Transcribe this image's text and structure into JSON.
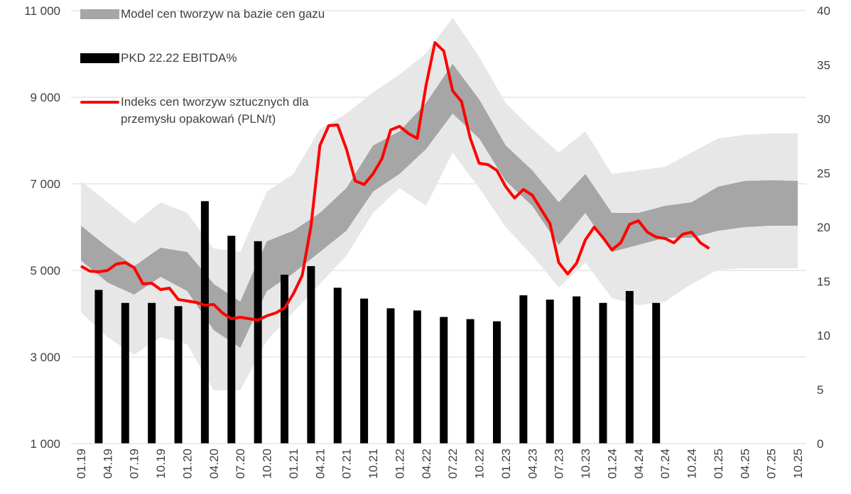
{
  "chart_data": {
    "type": "combo",
    "categories": [
      "01.19",
      null,
      null,
      "04.19",
      null,
      null,
      "07.19",
      null,
      null,
      "10.19",
      null,
      null,
      "01.20",
      null,
      null,
      "04.20",
      null,
      null,
      "07.20",
      null,
      null,
      "10.20",
      null,
      null,
      "01.21",
      null,
      null,
      "04.21",
      null,
      null,
      "07.21",
      null,
      null,
      "10.21",
      null,
      null,
      "01.22",
      null,
      null,
      "04.22",
      null,
      null,
      "07.22",
      null,
      null,
      "10.22",
      null,
      null,
      "01.23",
      null,
      null,
      "04.23",
      null,
      null,
      "07.23",
      null,
      null,
      "10.23",
      null,
      null,
      "01.24",
      null,
      null,
      "04.24",
      null,
      null,
      "07.24",
      null,
      null,
      "10.24",
      null,
      null,
      "01.25",
      null,
      null,
      "04.25",
      null,
      null,
      "07.25",
      null,
      null,
      "10.25"
    ],
    "ylim": [
      1000,
      11000
    ],
    "yticks": [
      {
        "value": 1000,
        "label": "1 000"
      },
      {
        "value": 3000,
        "label": "3 000"
      },
      {
        "value": 5000,
        "label": "5 000"
      },
      {
        "value": 7000,
        "label": "7 000"
      },
      {
        "value": 9000,
        "label": "9 000"
      },
      {
        "value": 11000,
        "label": "11 000"
      }
    ],
    "y2lim": [
      0,
      40
    ],
    "y2ticks": [
      0,
      5,
      10,
      15,
      20,
      25,
      30,
      35,
      40
    ],
    "grid": true,
    "outer_band": {
      "color": "#e7e7e7",
      "low": [
        4033,
        3842,
        3650,
        3459,
        3322,
        3186,
        3049,
        3186,
        3322,
        3459,
        3404,
        3350,
        3295,
        2940,
        2585,
        2230,
        2230,
        2230,
        2230,
        2612,
        2995,
        3377,
        3596,
        3814,
        4033,
        4252,
        4470,
        4689,
        4907,
        5126,
        5344,
        5672,
        6000,
        6328,
        6519,
        6711,
        6902,
        6765,
        6629,
        6492,
        6902,
        7311,
        7721,
        7448,
        7175,
        6902,
        6601,
        6301,
        6000,
        5781,
        5563,
        5344,
        5098,
        4853,
        4607,
        4798,
        4989,
        5180,
        4907,
        4634,
        4361,
        4306,
        4252,
        4197,
        4224,
        4252,
        4279,
        4416,
        4552,
        4689,
        4798,
        4907,
        5016,
        5027,
        5038,
        5049,
        5049,
        5049,
        5049,
        5049,
        5049,
        5049
      ],
      "high": [
        7066,
        6902,
        6738,
        6574,
        6410,
        6246,
        6082,
        6246,
        6410,
        6574,
        6492,
        6410,
        6328,
        6055,
        5781,
        5508,
        5481,
        5453,
        5426,
        5891,
        6355,
        6820,
        6957,
        7093,
        7230,
        7574,
        7918,
        8262,
        8382,
        8503,
        8623,
        8787,
        8951,
        9115,
        9252,
        9388,
        9525,
        9689,
        9852,
        10016,
        10289,
        10563,
        10836,
        10535,
        10235,
        9934,
        9579,
        9224,
        8869,
        8667,
        8464,
        8262,
        8082,
        7901,
        7721,
        7885,
        8049,
        8213,
        7885,
        7558,
        7230,
        7257,
        7284,
        7311,
        7338,
        7366,
        7393,
        7502,
        7612,
        7721,
        7830,
        7940,
        8049,
        8076,
        8104,
        8131,
        8142,
        8153,
        8164,
        8164,
        8164,
        8164
      ]
    },
    "series": [
      {
        "name": "Model cen tworzyw na bazie cen gazu",
        "type": "band",
        "color": "#a6a6a6",
        "low": [
          5230,
          5060,
          4891,
          4721,
          4628,
          4536,
          4443,
          4579,
          4716,
          4852,
          4743,
          4634,
          4525,
          4224,
          3924,
          3623,
          3486,
          3350,
          3213,
          3650,
          4088,
          4525,
          4661,
          4798,
          4934,
          5098,
          5262,
          5426,
          5590,
          5754,
          5918,
          6219,
          6519,
          6820,
          6957,
          7093,
          7230,
          7421,
          7612,
          7803,
          8076,
          8350,
          8623,
          8432,
          8240,
          8049,
          7721,
          7394,
          7066,
          6875,
          6683,
          6492,
          6191,
          5891,
          5590,
          5836,
          6082,
          6328,
          6027,
          5727,
          5426,
          5481,
          5535,
          5590,
          5645,
          5699,
          5754,
          5754,
          5754,
          5754,
          5809,
          5863,
          5918,
          5945,
          5973,
          6000,
          6011,
          6022,
          6033,
          6033,
          6033,
          6033
        ],
        "high": [
          6033,
          5869,
          5705,
          5541,
          5393,
          5246,
          5098,
          5240,
          5383,
          5525,
          5492,
          5459,
          5426,
          5180,
          4935,
          4689,
          4552,
          4416,
          4279,
          4743,
          5208,
          5672,
          5754,
          5836,
          5918,
          6055,
          6191,
          6328,
          6519,
          6711,
          6902,
          7230,
          7557,
          7885,
          7994,
          8104,
          8213,
          8432,
          8650,
          8869,
          9169,
          9470,
          9770,
          9497,
          9224,
          8951,
          8596,
          8240,
          7885,
          7694,
          7502,
          7311,
          7065,
          6820,
          6574,
          6793,
          7011,
          7230,
          6929,
          6629,
          6328,
          6328,
          6328,
          6328,
          6383,
          6437,
          6492,
          6519,
          6547,
          6574,
          6694,
          6814,
          6934,
          6978,
          7022,
          7066,
          7071,
          7077,
          7082,
          7077,
          7071,
          7066
        ]
      },
      {
        "name": "PKD 22.22 EBITDA%",
        "type": "bar",
        "color": "#000000",
        "axis": "y2",
        "values": [
          null,
          null,
          14.2,
          null,
          null,
          13.0,
          null,
          null,
          13.0,
          null,
          null,
          12.7,
          null,
          null,
          22.4,
          null,
          null,
          19.2,
          null,
          null,
          18.7,
          null,
          null,
          15.6,
          null,
          null,
          16.4,
          null,
          null,
          14.4,
          null,
          null,
          13.4,
          null,
          null,
          12.5,
          null,
          null,
          12.3,
          null,
          null,
          11.7,
          null,
          null,
          11.5,
          null,
          null,
          11.3,
          null,
          null,
          13.7,
          null,
          null,
          13.3,
          null,
          null,
          13.6,
          null,
          null,
          13.0,
          null,
          null,
          14.1,
          null,
          null,
          13.0,
          null,
          null,
          null,
          null,
          null,
          null,
          null,
          null,
          null,
          null,
          null,
          null,
          null,
          null,
          null,
          null
        ]
      },
      {
        "name": "Indeks cen tworzyw sztucznych dla przemysłu opakowań (PLN/t)",
        "type": "line",
        "color": "#ff0000",
        "values": [
          5098,
          4984,
          4967,
          5000,
          5148,
          5180,
          5066,
          4689,
          4705,
          4557,
          4590,
          4328,
          4295,
          4262,
          4197,
          4213,
          4016,
          3885,
          3918,
          3885,
          3852,
          3951,
          4016,
          4131,
          4459,
          4885,
          6033,
          7885,
          8344,
          8361,
          7803,
          7066,
          6984,
          7230,
          7574,
          8246,
          8328,
          8164,
          8049,
          9279,
          10262,
          10066,
          9148,
          8902,
          8049,
          7475,
          7443,
          7311,
          6934,
          6672,
          6869,
          6738,
          6410,
          6082,
          5180,
          4918,
          5164,
          5705,
          6000,
          5754,
          5475,
          5639,
          6066,
          6148,
          5885,
          5770,
          5738,
          5639,
          5836,
          5885,
          5639,
          5508,
          null,
          null,
          null,
          null,
          null,
          null,
          null,
          null,
          null,
          null
        ]
      }
    ]
  }
}
